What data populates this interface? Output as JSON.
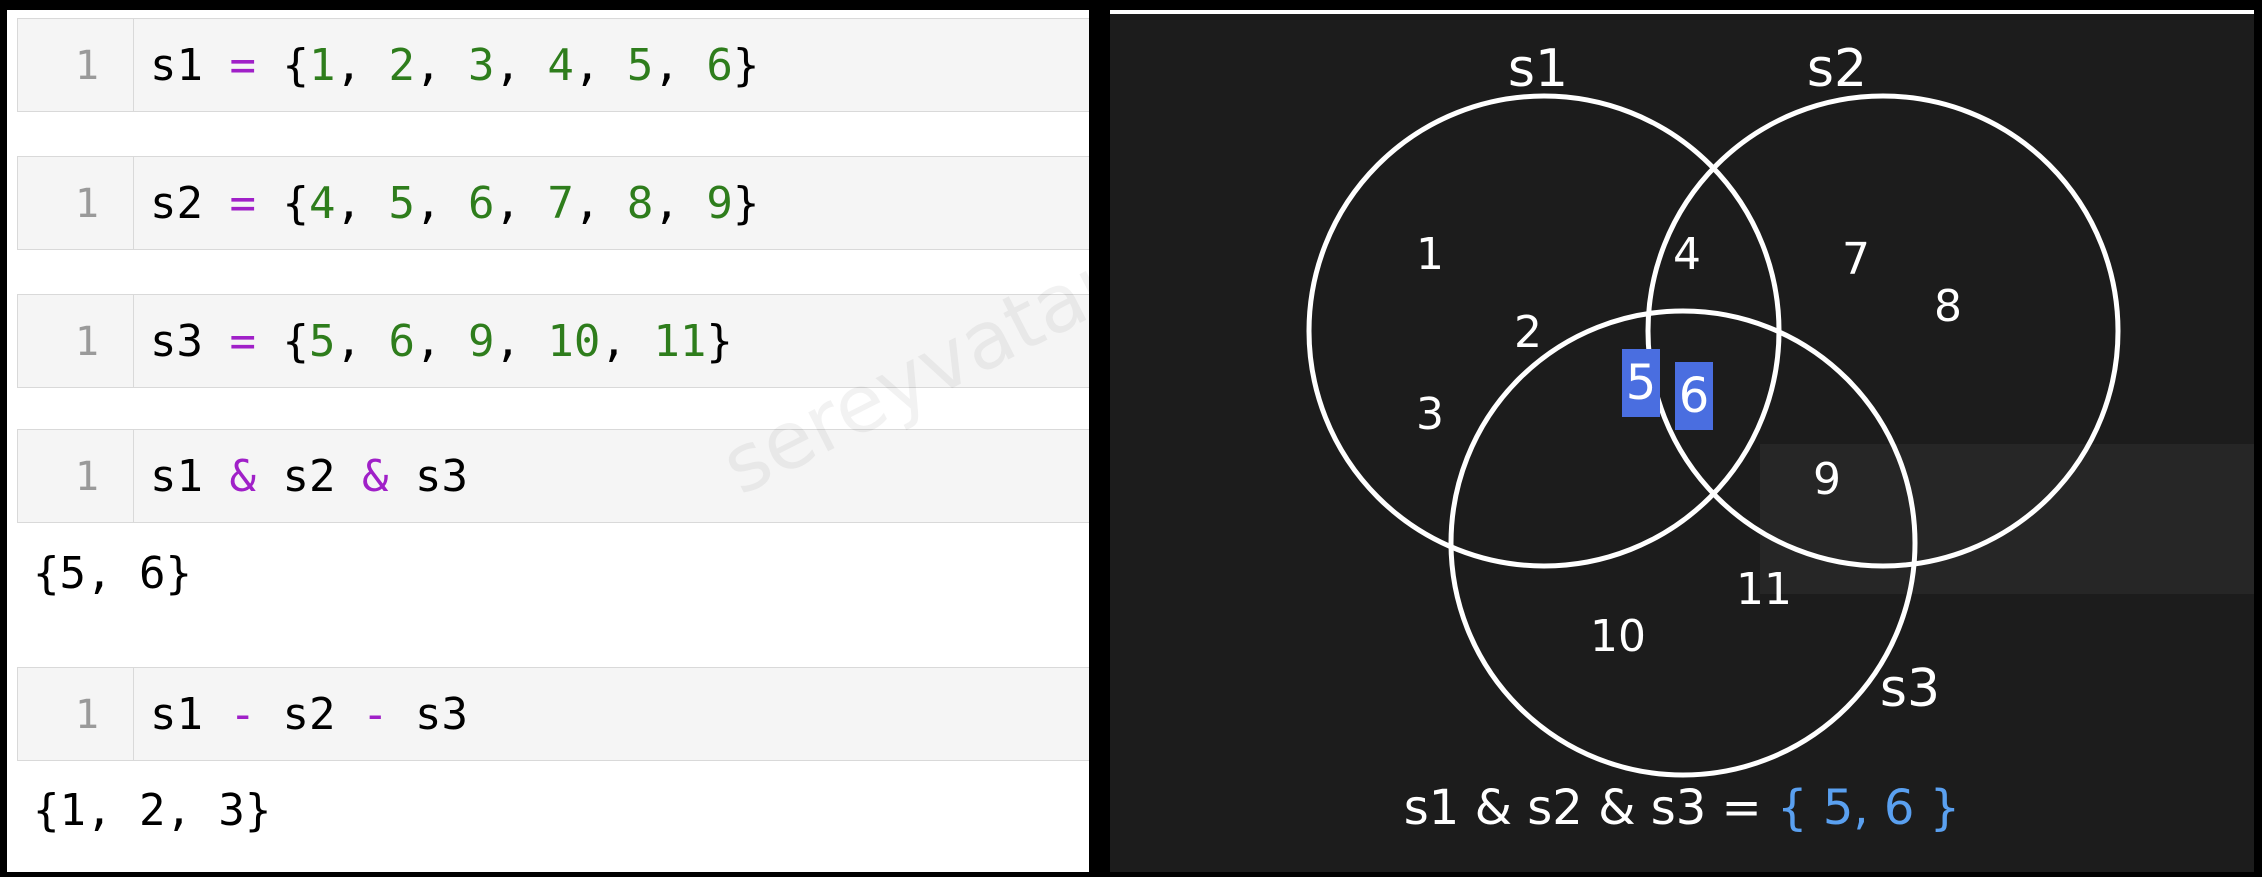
{
  "code_cells": [
    {
      "line_number": "1",
      "tokens": [
        {
          "t": "s1",
          "k": "var"
        },
        {
          "t": " ",
          "k": "punct"
        },
        {
          "t": "=",
          "k": "op"
        },
        {
          "t": " {",
          "k": "punct"
        },
        {
          "t": "1",
          "k": "num"
        },
        {
          "t": ", ",
          "k": "punct"
        },
        {
          "t": "2",
          "k": "num"
        },
        {
          "t": ", ",
          "k": "punct"
        },
        {
          "t": "3",
          "k": "num"
        },
        {
          "t": ", ",
          "k": "punct"
        },
        {
          "t": "4",
          "k": "num"
        },
        {
          "t": ", ",
          "k": "punct"
        },
        {
          "t": "5",
          "k": "num"
        },
        {
          "t": ", ",
          "k": "punct"
        },
        {
          "t": "6",
          "k": "num"
        },
        {
          "t": "}",
          "k": "punct"
        }
      ],
      "output": ""
    },
    {
      "line_number": "1",
      "tokens": [
        {
          "t": "s2",
          "k": "var"
        },
        {
          "t": " ",
          "k": "punct"
        },
        {
          "t": "=",
          "k": "op"
        },
        {
          "t": " {",
          "k": "punct"
        },
        {
          "t": "4",
          "k": "num"
        },
        {
          "t": ", ",
          "k": "punct"
        },
        {
          "t": "5",
          "k": "num"
        },
        {
          "t": ", ",
          "k": "punct"
        },
        {
          "t": "6",
          "k": "num"
        },
        {
          "t": ", ",
          "k": "punct"
        },
        {
          "t": "7",
          "k": "num"
        },
        {
          "t": ", ",
          "k": "punct"
        },
        {
          "t": "8",
          "k": "num"
        },
        {
          "t": ", ",
          "k": "punct"
        },
        {
          "t": "9",
          "k": "num"
        },
        {
          "t": "}",
          "k": "punct"
        }
      ],
      "output": ""
    },
    {
      "line_number": "1",
      "tokens": [
        {
          "t": "s3",
          "k": "var"
        },
        {
          "t": " ",
          "k": "punct"
        },
        {
          "t": "=",
          "k": "op"
        },
        {
          "t": " {",
          "k": "punct"
        },
        {
          "t": "5",
          "k": "num"
        },
        {
          "t": ", ",
          "k": "punct"
        },
        {
          "t": "6",
          "k": "num"
        },
        {
          "t": ", ",
          "k": "punct"
        },
        {
          "t": "9",
          "k": "num"
        },
        {
          "t": ", ",
          "k": "punct"
        },
        {
          "t": "10",
          "k": "num"
        },
        {
          "t": ", ",
          "k": "punct"
        },
        {
          "t": "11",
          "k": "num"
        },
        {
          "t": "}",
          "k": "punct"
        }
      ],
      "output": ""
    },
    {
      "line_number": "1",
      "tokens": [
        {
          "t": "s1",
          "k": "var"
        },
        {
          "t": " ",
          "k": "punct"
        },
        {
          "t": "&",
          "k": "op"
        },
        {
          "t": " ",
          "k": "punct"
        },
        {
          "t": "s2",
          "k": "var"
        },
        {
          "t": " ",
          "k": "punct"
        },
        {
          "t": "&",
          "k": "op"
        },
        {
          "t": " ",
          "k": "punct"
        },
        {
          "t": "s3",
          "k": "var"
        }
      ],
      "output": "{5, 6}"
    },
    {
      "line_number": "1",
      "tokens": [
        {
          "t": "s1",
          "k": "var"
        },
        {
          "t": " ",
          "k": "punct"
        },
        {
          "t": "-",
          "k": "op"
        },
        {
          "t": " ",
          "k": "punct"
        },
        {
          "t": "s2",
          "k": "var"
        },
        {
          "t": " ",
          "k": "punct"
        },
        {
          "t": "-",
          "k": "op"
        },
        {
          "t": " ",
          "k": "punct"
        },
        {
          "t": "s3",
          "k": "var"
        }
      ],
      "output": "{1, 2, 3}"
    }
  ],
  "watermark": "sereyvatana@gmail.com",
  "venn": {
    "sets": [
      {
        "name": "s1",
        "elements_only": [
          "1",
          "2",
          "3"
        ]
      },
      {
        "name": "s2",
        "elements_only": [
          "7",
          "8"
        ]
      },
      {
        "name": "s3",
        "elements_only": [
          "10",
          "11"
        ]
      }
    ],
    "s1_s2_only": [
      "4"
    ],
    "s2_s3_only": [
      "9"
    ],
    "all_three": [
      "5",
      "6"
    ],
    "caption_expression": "s1 & s2 & s3 = ",
    "caption_result": "{ 5, 6 }",
    "colors": {
      "highlight": "#4a6ee0",
      "result_text": "#5aa0f0",
      "circle_stroke": "#ffffff",
      "panel_bg": "#1c1c1c"
    }
  }
}
